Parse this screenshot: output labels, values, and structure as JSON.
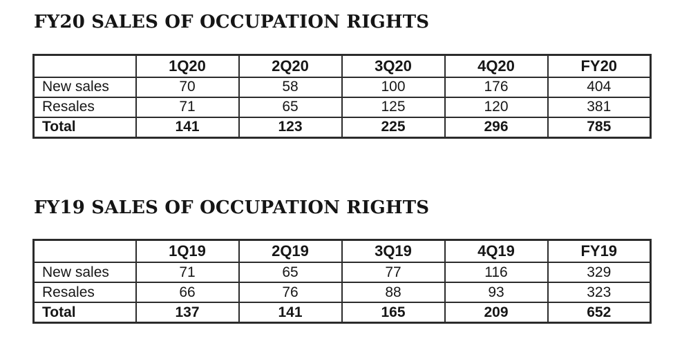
{
  "page": {
    "background": "#ffffff",
    "text_color": "#161616",
    "border_color": "#2b2b2b"
  },
  "tables": [
    {
      "title": "FY20 SALES OF OCCUPATION RIGHTS",
      "columns": [
        "",
        "1Q20",
        "2Q20",
        "3Q20",
        "4Q20",
        "FY20"
      ],
      "rows": [
        {
          "label": "New sales",
          "values": [
            "70",
            "58",
            "100",
            "176",
            "404"
          ]
        },
        {
          "label": "Resales",
          "values": [
            "71",
            "65",
            "125",
            "120",
            "381"
          ]
        },
        {
          "label": "Total",
          "values": [
            "141",
            "123",
            "225",
            "296",
            "785"
          ]
        }
      ]
    },
    {
      "title": "FY19 SALES OF OCCUPATION RIGHTS",
      "columns": [
        "",
        "1Q19",
        "2Q19",
        "3Q19",
        "4Q19",
        "FY19"
      ],
      "rows": [
        {
          "label": "New sales",
          "values": [
            "71",
            "65",
            "77",
            "116",
            "329"
          ]
        },
        {
          "label": "Resales",
          "values": [
            "66",
            "76",
            "88",
            "93",
            "323"
          ]
        },
        {
          "label": "Total",
          "values": [
            "137",
            "141",
            "165",
            "209",
            "652"
          ]
        }
      ]
    }
  ]
}
